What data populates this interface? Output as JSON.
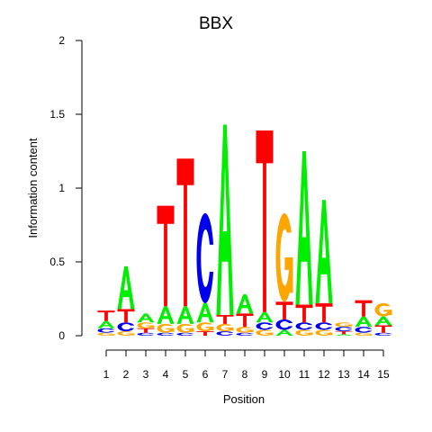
{
  "chart_data": {
    "type": "sequence-logo",
    "title": "BBX",
    "xlabel": "Position",
    "ylabel": "Information content",
    "ylim": [
      0,
      2
    ],
    "yticks": [
      "0",
      "0.5",
      "1",
      "1.5",
      "2"
    ],
    "positions": [
      "1",
      "2",
      "3",
      "4",
      "5",
      "6",
      "7",
      "8",
      "9",
      "10",
      "11",
      "12",
      "13",
      "14",
      "15"
    ],
    "colors": {
      "A": "#00ee00",
      "C": "#0000ee",
      "G": "#ffa500",
      "T": "#ff0000"
    },
    "columns": [
      [
        [
          "G",
          0.02
        ],
        [
          "C",
          0.03
        ],
        [
          "A",
          0.05
        ],
        [
          "T",
          0.07
        ]
      ],
      [
        [
          "G",
          0.03
        ],
        [
          "C",
          0.06
        ],
        [
          "T",
          0.09
        ],
        [
          "A",
          0.29
        ]
      ],
      [
        [
          "C",
          0.02
        ],
        [
          "T",
          0.03
        ],
        [
          "G",
          0.04
        ],
        [
          "A",
          0.06
        ]
      ],
      [
        [
          "C",
          0.02
        ],
        [
          "G",
          0.06
        ],
        [
          "A",
          0.12
        ],
        [
          "T",
          0.68
        ]
      ],
      [
        [
          "C",
          0.02
        ],
        [
          "G",
          0.06
        ],
        [
          "A",
          0.12
        ],
        [
          "T",
          1.0
        ]
      ],
      [
        [
          "T",
          0.03
        ],
        [
          "G",
          0.06
        ],
        [
          "A",
          0.13
        ],
        [
          "C",
          0.61
        ]
      ],
      [
        [
          "C",
          0.03
        ],
        [
          "G",
          0.05
        ],
        [
          "T",
          0.06
        ],
        [
          "A",
          1.29
        ]
      ],
      [
        [
          "C",
          0.02
        ],
        [
          "G",
          0.04
        ],
        [
          "T",
          0.09
        ],
        [
          "A",
          0.13
        ]
      ],
      [
        [
          "G",
          0.04
        ],
        [
          "C",
          0.05
        ],
        [
          "A",
          0.07
        ],
        [
          "T",
          1.23
        ]
      ],
      [
        [
          "A",
          0.04
        ],
        [
          "C",
          0.07
        ],
        [
          "T",
          0.12
        ],
        [
          "G",
          0.6
        ]
      ],
      [
        [
          "G",
          0.04
        ],
        [
          "C",
          0.05
        ],
        [
          "T",
          0.12
        ],
        [
          "A",
          1.04
        ]
      ],
      [
        [
          "G",
          0.04
        ],
        [
          "C",
          0.05
        ],
        [
          "T",
          0.13
        ],
        [
          "A",
          0.7
        ]
      ],
      [
        [
          "A",
          0.01
        ],
        [
          "T",
          0.02
        ],
        [
          "C",
          0.03
        ],
        [
          "G",
          0.03
        ]
      ],
      [
        [
          "G",
          0.02
        ],
        [
          "C",
          0.04
        ],
        [
          "A",
          0.07
        ],
        [
          "T",
          0.11
        ]
      ],
      [
        [
          "C",
          0.02
        ],
        [
          "T",
          0.05
        ],
        [
          "A",
          0.06
        ],
        [
          "G",
          0.09
        ]
      ]
    ]
  }
}
